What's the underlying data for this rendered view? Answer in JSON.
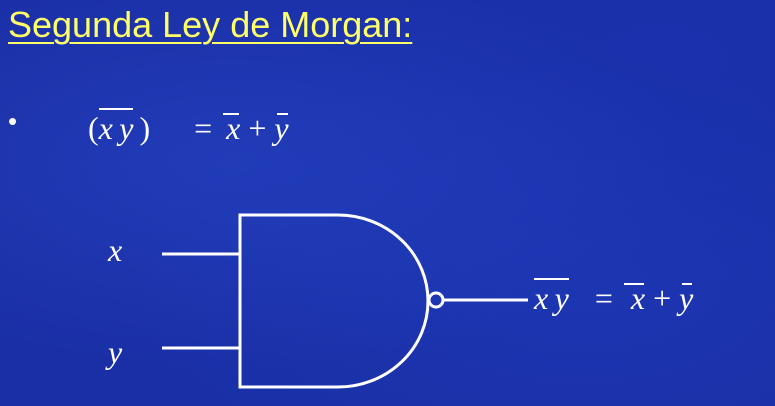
{
  "slide": {
    "title": "Segunda Ley de Morgan:",
    "bullet": "•"
  },
  "equation": {
    "open_paren": "(",
    "x": "x",
    "y": "y",
    "close_paren": ")",
    "equals": "=",
    "plus": "+"
  },
  "diagram": {
    "gate": "NAND",
    "input_x": "x",
    "input_y": "y",
    "output_x": "x",
    "output_y": "y",
    "output_equals": "=",
    "output_plus": "+"
  },
  "colors": {
    "background": "#1a2fa6",
    "title": "#ffff66",
    "foreground": "#ffffff"
  }
}
